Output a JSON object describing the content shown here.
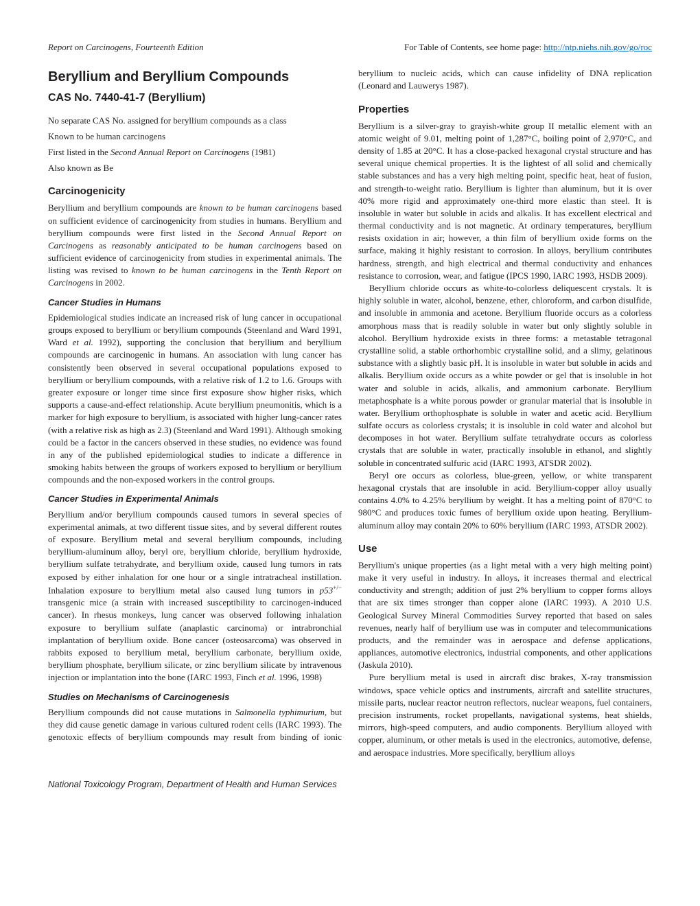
{
  "header": {
    "left": "Report on Carcinogens, Fourteenth Edition",
    "right_label": "For Table of Contents, see home page: ",
    "right_link": "http://ntp.niehs.nih.gov/go/roc"
  },
  "title": "Beryllium and Beryllium Compounds",
  "cas": "CAS No. 7440-41-7 (Beryllium)",
  "intro": {
    "line1": "No separate CAS No. assigned for beryllium compounds as a class",
    "line2": "Known to be human carcinogens",
    "line3_pre": "First listed in the ",
    "line3_em": "Second Annual Report on Carcinogens",
    "line3_post": " (1981)",
    "line4": "Also known as Be"
  },
  "carcinogenicity": {
    "heading": "Carcinogenicity",
    "p1_a": "Beryllium and beryllium compounds are ",
    "p1_em1": "known to be human carcinogens",
    "p1_b": " based on sufficient evidence of carcinogenicity from studies in humans. Beryllium and beryllium compounds were first listed in the ",
    "p1_em2": "Second Annual Report on Carcinogens",
    "p1_c": " as ",
    "p1_em3": "reasonably anticipated to be human carcinogens",
    "p1_d": " based on sufficient evidence of carcinogenicity from studies in experimental animals. The listing was revised to ",
    "p1_em4": "known to be human carcinogens",
    "p1_e": " in the ",
    "p1_em5": "Tenth Report on Carcinogens",
    "p1_f": " in 2002."
  },
  "humans": {
    "heading": "Cancer Studies in Humans",
    "p1": "Epidemiological studies indicate an increased risk of lung cancer in occupational groups exposed to beryllium or beryllium compounds (Steenland and Ward 1991, Ward ",
    "p1_em": "et al.",
    "p1_b": " 1992), supporting the conclusion that beryllium and beryllium compounds are carcinogenic in humans. An association with lung cancer has consistently been observed in several occupational populations exposed to beryllium or beryllium compounds, with a relative risk of 1.2 to 1.6. Groups with greater exposure or longer time since first exposure show higher risks, which supports a cause-and-effect relationship. Acute beryllium pneumonitis, which is a marker for high exposure to beryllium, is associated with higher lung-cancer rates (with a relative risk as high as 2.3) (Steenland and Ward 1991). Although smoking could be a factor in the cancers observed in these studies, no evidence was found in any of the published epidemiological studies to indicate a difference in smoking habits between the groups of workers exposed to beryllium or beryllium compounds and the non-exposed workers in the control groups."
  },
  "animals": {
    "heading": "Cancer Studies in Experimental Animals",
    "p1_a": "Beryllium and/or beryllium compounds caused tumors in several species of experimental animals, at two different tissue sites, and by several different routes of exposure. Beryllium metal and several beryllium compounds, including beryllium-aluminum alloy, beryl ore, beryllium chloride, beryllium hydroxide, beryllium sulfate tetrahydrate, and beryllium oxide, caused lung tumors in rats exposed by either inhalation for one hour or a single intratracheal instillation. Inhalation exposure to beryllium metal also caused lung tumors in ",
    "p1_em": "p53",
    "p1_sup": "+/−",
    "p1_b": " transgenic mice (a strain with increased susceptibility to carcinogen-induced cancer). In rhesus monkeys, lung cancer was observed following inhalation exposure to beryllium sulfate (anaplastic carcinoma) or intrabronchial implantation of beryllium oxide. Bone cancer (osteosarcoma) was observed in rabbits exposed to beryllium metal, beryllium carbonate, beryllium oxide, beryllium phosphate, beryllium silicate, or zinc beryllium silicate by intravenous injection or implantation into the bone (IARC 1993, Finch ",
    "p1_em2": "et al.",
    "p1_c": " 1996, 1998)"
  },
  "mechanisms": {
    "heading": "Studies on Mechanisms of Carcinogenesis",
    "p1_a": "Beryllium compounds did not cause mutations in ",
    "p1_em": "Salmonella typhimurium,",
    "p1_b": " but they did cause genetic damage in various cultured rodent cells (IARC 1993). The genotoxic effects of beryllium compounds may result from binding of ionic beryllium to nucleic acids, which can cause infidelity of DNA replication (Leonard and Lauwerys 1987)."
  },
  "properties": {
    "heading": "Properties",
    "p1": "Beryllium is a silver-gray to grayish-white group II metallic element with an atomic weight of 9.01, melting point of 1,287°C, boiling point of 2,970°C, and density of 1.85 at 20°C. It has a close-packed hexagonal crystal structure and has several unique chemical properties. It is the lightest of all solid and chemically stable substances and has a very high melting point, specific heat, heat of fusion, and strength-to-weight ratio. Beryllium is lighter than aluminum, but it is over 40% more rigid and approximately one-third more elastic than steel. It is insoluble in water but soluble in acids and alkalis. It has excellent electrical and thermal conductivity and is not magnetic. At ordinary temperatures, beryllium resists oxidation in air; however, a thin film of beryllium oxide forms on the surface, making it highly resistant to corrosion. In alloys, beryllium contributes hardness, strength, and high electrical and thermal conductivity and enhances resistance to corrosion, wear, and fatigue (IPCS 1990, IARC 1993, HSDB 2009).",
    "p2": "Beryllium chloride occurs as white-to-colorless deliquescent crystals. It is highly soluble in water, alcohol, benzene, ether, chloroform, and carbon disulfide, and insoluble in ammonia and acetone. Beryllium fluoride occurs as a colorless amorphous mass that is readily soluble in water but only slightly soluble in alcohol. Beryllium hydroxide exists in three forms: a metastable tetragonal crystalline solid, a stable orthorhombic crystalline solid, and a slimy, gelatinous substance with a slightly basic pH. It is insoluble in water but soluble in acids and alkalis. Beryllium oxide occurs as a white powder or gel that is insoluble in hot water and soluble in acids, alkalis, and ammonium carbonate. Beryllium metaphosphate is a white porous powder or granular material that is insoluble in water. Beryllium orthophosphate is soluble in water and acetic acid. Beryllium sulfate occurs as colorless crystals; it is insoluble in cold water and alcohol but decomposes in hot water. Beryllium sulfate tetrahydrate occurs as colorless crystals that are soluble in water, practically insoluble in ethanol, and slightly soluble in concentrated sulfuric acid (IARC 1993, ATSDR 2002).",
    "p3": "Beryl ore occurs as colorless, blue-green, yellow, or white transparent hexagonal crystals that are insoluble in acid. Beryllium-copper alloy usually contains 4.0% to 4.25% beryllium by weight. It has a melting point of 870°C to 980°C and produces toxic fumes of beryllium oxide upon heating. Beryllium-aluminum alloy may contain 20% to 60% beryllium (IARC 1993, ATSDR 2002)."
  },
  "use": {
    "heading": "Use",
    "p1": "Beryllium's unique properties (as a light metal with a very high melting point) make it very useful in industry. In alloys, it increases thermal and electrical conductivity and strength; addition of just 2% beryllium to copper forms alloys that are six times stronger than copper alone (IARC 1993). A 2010 U.S. Geological Survey Mineral Commodities Survey reported that based on sales revenues, nearly half of beryllium use was in computer and telecommunications products, and the remainder was in aerospace and defense applications, appliances, automotive electronics, industrial components, and other applications (Jaskula 2010).",
    "p2": "Pure beryllium metal is used in aircraft disc brakes, X-ray transmission windows, space vehicle optics and instruments, aircraft and satellite structures, missile parts, nuclear reactor neutron reflectors, nuclear weapons, fuel containers, precision instruments, rocket propellants, navigational systems, heat shields, mirrors, high-speed computers, and audio components. Beryllium alloyed with copper, aluminum, or other metals is used in the electronics, automotive, defense, and aerospace industries. More specifically, beryllium alloys"
  },
  "footer": "National Toxicology Program, Department of Health and Human Services"
}
